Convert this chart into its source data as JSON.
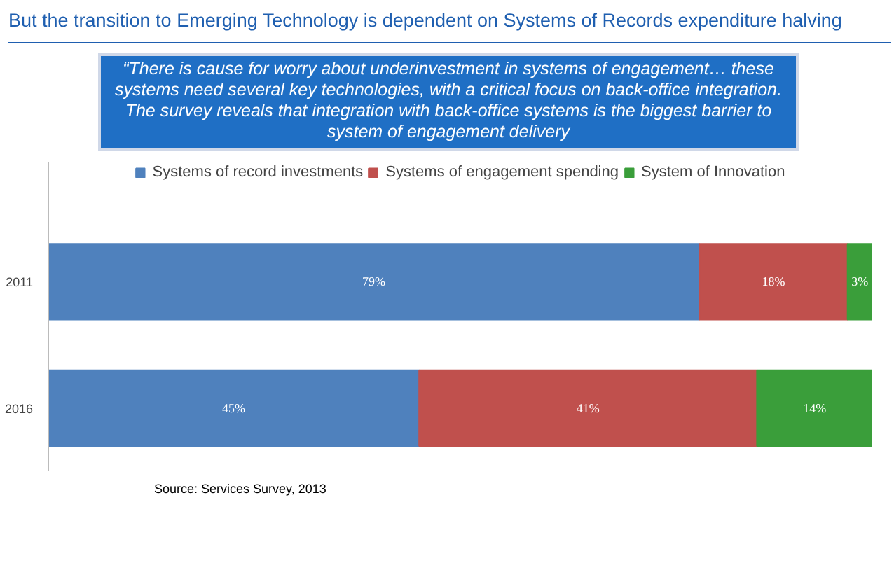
{
  "chart_data": {
    "type": "bar",
    "orientation": "horizontal",
    "stacked": true,
    "title": "But the transition to Emerging Technology is dependent on Systems of Records expenditure halving",
    "annotations": [
      "“There is cause for worry about underinvestment in systems of engagement… these systems need several key technologies, with a critical focus on back-office integration. The survey reveals that integration with back-office systems is the biggest barrier to system of engagement delivery",
      "Source: Services Survey, 2013"
    ],
    "categories": [
      "2011",
      "2016"
    ],
    "series": [
      {
        "name": "Systems of record investments",
        "color": "#4f81bd",
        "values": [
          79,
          45
        ],
        "value_labels": [
          "79%",
          "45%"
        ]
      },
      {
        "name": "Systems of engagement spending",
        "color": "#c0504d",
        "values": [
          18,
          41
        ],
        "value_labels": [
          "18%",
          "41%"
        ]
      },
      {
        "name": "System of Innovation",
        "color": "#3a9e3a",
        "values": [
          3,
          14
        ],
        "value_labels": [
          "3%",
          "14%"
        ]
      }
    ],
    "legend": "top",
    "tick_labels": "y",
    "grid": false
  }
}
